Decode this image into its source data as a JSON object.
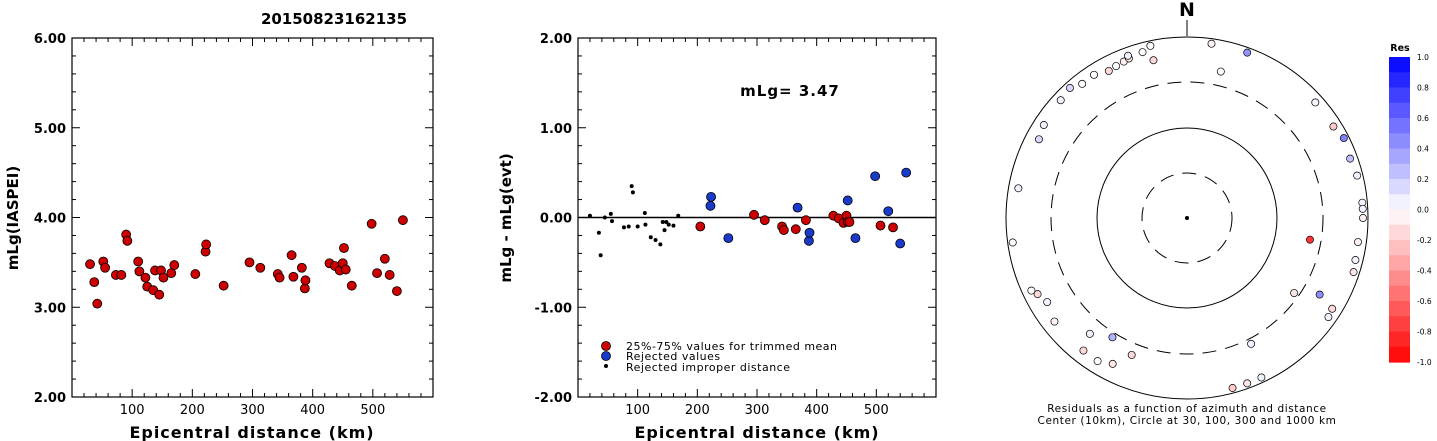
{
  "title": "20150823162135",
  "chart_data": [
    {
      "type": "scatter",
      "ylabel": "mLg(IASPEI)",
      "xlabel": "Epicentral distance (km)",
      "xlim": [
        0,
        600
      ],
      "ylim": [
        2.0,
        6.0
      ],
      "x_ticks": [
        "100",
        "200",
        "300",
        "400",
        "500"
      ],
      "y_ticks": [
        "2.00",
        "3.00",
        "4.00",
        "5.00",
        "6.00"
      ],
      "points": [
        [
          30,
          3.48
        ],
        [
          37,
          3.28
        ],
        [
          42,
          3.04
        ],
        [
          52,
          3.51
        ],
        [
          55,
          3.44
        ],
        [
          73,
          3.36
        ],
        [
          82,
          3.36
        ],
        [
          90,
          3.81
        ],
        [
          92,
          3.74
        ],
        [
          110,
          3.51
        ],
        [
          112,
          3.4
        ],
        [
          122,
          3.33
        ],
        [
          125,
          3.23
        ],
        [
          135,
          3.19
        ],
        [
          138,
          3.41
        ],
        [
          145,
          3.14
        ],
        [
          148,
          3.41
        ],
        [
          152,
          3.33
        ],
        [
          165,
          3.38
        ],
        [
          170,
          3.47
        ],
        [
          205,
          3.37
        ],
        [
          222,
          3.62
        ],
        [
          223,
          3.7
        ],
        [
          252,
          3.24
        ],
        [
          295,
          3.5
        ],
        [
          313,
          3.44
        ],
        [
          342,
          3.37
        ],
        [
          345,
          3.33
        ],
        [
          365,
          3.58
        ],
        [
          368,
          3.34
        ],
        [
          382,
          3.44
        ],
        [
          387,
          3.21
        ],
        [
          388,
          3.3
        ],
        [
          428,
          3.49
        ],
        [
          437,
          3.46
        ],
        [
          445,
          3.41
        ],
        [
          450,
          3.49
        ],
        [
          452,
          3.66
        ],
        [
          455,
          3.42
        ],
        [
          465,
          3.24
        ],
        [
          498,
          3.93
        ],
        [
          507,
          3.38
        ],
        [
          520,
          3.54
        ],
        [
          528,
          3.36
        ],
        [
          540,
          3.18
        ],
        [
          550,
          3.97
        ]
      ]
    },
    {
      "type": "scatter",
      "ylabel": "mLg - mLg(evt)",
      "xlabel": "Epicentral distance (km)",
      "xlim": [
        0,
        600
      ],
      "ylim": [
        -2.0,
        2.0
      ],
      "x_ticks": [
        "100",
        "200",
        "300",
        "400",
        "500"
      ],
      "y_ticks": [
        "-2.00",
        "-1.00",
        "0.00",
        "1.00",
        "2.00"
      ],
      "annotation": "mLg= 3.47",
      "zero_line": true,
      "legend": [
        "25%-75% values for trimmed mean",
        "Rejected values",
        "Rejected improper distance"
      ],
      "series": [
        {
          "name": "25%-75% values for trimmed mean",
          "color": "#cc0000",
          "points": [
            [
              205,
              -0.1
            ],
            [
              295,
              0.03
            ],
            [
              313,
              -0.03
            ],
            [
              342,
              -0.1
            ],
            [
              345,
              -0.14
            ],
            [
              365,
              -0.13
            ],
            [
              382,
              -0.03
            ],
            [
              428,
              0.02
            ],
            [
              437,
              -0.01
            ],
            [
              445,
              -0.06
            ],
            [
              450,
              0.02
            ],
            [
              452,
              -0.05
            ],
            [
              455,
              -0.05
            ],
            [
              507,
              -0.09
            ],
            [
              528,
              -0.11
            ]
          ]
        },
        {
          "name": "Rejected values",
          "color": "#1a3acc",
          "points": [
            [
              222,
              0.13
            ],
            [
              223,
              0.23
            ],
            [
              252,
              -0.23
            ],
            [
              368,
              0.11
            ],
            [
              387,
              -0.26
            ],
            [
              388,
              -0.17
            ],
            [
              452,
              0.19
            ],
            [
              465,
              -0.23
            ],
            [
              498,
              0.46
            ],
            [
              520,
              0.07
            ],
            [
              540,
              -0.29
            ],
            [
              550,
              0.5
            ]
          ]
        },
        {
          "name": "Rejected improper distance",
          "color": "#000000",
          "points": [
            [
              20,
              0.02
            ],
            [
              35,
              -0.17
            ],
            [
              38,
              -0.42
            ],
            [
              45,
              0.0
            ],
            [
              55,
              0.04
            ],
            [
              57,
              -0.04
            ],
            [
              77,
              -0.11
            ],
            [
              85,
              -0.1
            ],
            [
              90,
              0.35
            ],
            [
              92,
              0.28
            ],
            [
              100,
              -0.1
            ],
            [
              112,
              0.05
            ],
            [
              113,
              -0.08
            ],
            [
              122,
              -0.22
            ],
            [
              130,
              -0.25
            ],
            [
              138,
              -0.3
            ],
            [
              142,
              -0.05
            ],
            [
              145,
              -0.14
            ],
            [
              148,
              -0.05
            ],
            [
              152,
              -0.08
            ],
            [
              160,
              -0.09
            ],
            [
              168,
              0.02
            ]
          ]
        }
      ]
    },
    {
      "type": "scatter",
      "subtype": "polar",
      "north_label": "N",
      "caption_line1": "Residuals as a function of azimuth and distance",
      "caption_line2": "Center (10km), Circle at 30, 100, 300 and 1000 km",
      "colorbar": {
        "title": "Res",
        "ticks": [
          "1.0",
          "0.8",
          "0.6",
          "0.4",
          "0.2",
          "0.0",
          "-0.2",
          "-0.4",
          "-0.6",
          "-0.8",
          "-1.0"
        ]
      },
      "points_az_dist_res": [
        [
          20,
          1010,
          0.42
        ],
        [
          8,
          950,
          -0.05
        ],
        [
          -12,
          910,
          0.0
        ],
        [
          48,
          800,
          0.03
        ],
        [
          63,
          990,
          0.5
        ],
        [
          58,
          800,
          -0.2
        ],
        [
          70,
          820,
          0.25
        ],
        [
          76,
          860,
          0.05
        ],
        [
          85,
          900,
          0.05
        ],
        [
          90,
          940,
          -0.05
        ],
        [
          87,
          970,
          0.05
        ],
        [
          98,
          800,
          -0.05
        ],
        [
          104,
          820,
          0.05
        ],
        [
          108,
          855,
          -0.1
        ],
        [
          122,
          770,
          -0.15
        ],
        [
          125,
          800,
          0.05
        ],
        [
          160,
          875,
          -0.1
        ],
        [
          155,
          930,
          0.05
        ],
        [
          165,
          990,
          -0.2
        ],
        [
          120,
          475,
          0.45
        ],
        [
          125,
          265,
          -0.1
        ],
        [
          153,
          345,
          0.05
        ],
        [
          212,
          340,
          0.3
        ],
        [
          202,
          410,
          -0.15
        ],
        [
          220,
          450,
          0.05
        ],
        [
          207,
          630,
          -0.1
        ],
        [
          212,
          720,
          0.0
        ],
        [
          218,
          710,
          -0.15
        ],
        [
          232,
          710,
          -0.05
        ],
        [
          243,
          700,
          -0.15
        ],
        [
          239,
          620,
          0.05
        ],
        [
          245,
          780,
          0.0
        ],
        [
          262,
          1000,
          0.0
        ],
        [
          280,
          770,
          0.05
        ],
        [
          298,
          700,
          0.15
        ],
        [
          303,
          760,
          0.05
        ],
        [
          313,
          800,
          0.05
        ],
        [
          318,
          850,
          0.15
        ],
        [
          322,
          750,
          0.0
        ],
        [
          327,
          760,
          0.0
        ],
        [
          332,
          680,
          -0.15
        ],
        [
          335,
          700,
          0.0
        ],
        [
          338,
          720,
          -0.05
        ],
        [
          340,
          740,
          -0.1
        ],
        [
          345,
          780,
          0.0
        ],
        [
          340,
          800,
          0.05
        ],
        [
          348,
          590,
          -0.15
        ],
        [
          13,
          440,
          0.0
        ],
        [
          100,
          230,
          -0.8
        ]
      ]
    }
  ]
}
